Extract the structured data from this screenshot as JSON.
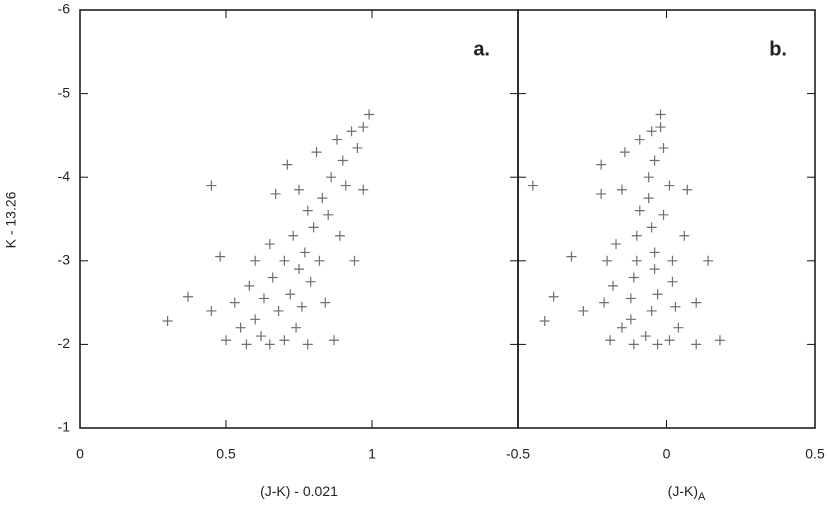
{
  "chart_data": [
    {
      "type": "scatter",
      "annotation": "a.",
      "xlabel": "(J-K) - 0.021",
      "ylabel": "K - 13.26",
      "color": "#6f6f6f",
      "xlim": [
        0,
        1.5
      ],
      "xticks": [
        0,
        0.5,
        1
      ],
      "ylim": [
        -1,
        -6
      ],
      "yticks": [
        -6,
        -5,
        -4,
        -3,
        -2,
        -1
      ],
      "x": [
        0.3,
        0.37,
        0.45,
        0.45,
        0.48,
        0.5,
        0.53,
        0.55,
        0.57,
        0.58,
        0.6,
        0.6,
        0.62,
        0.63,
        0.65,
        0.65,
        0.66,
        0.67,
        0.68,
        0.7,
        0.7,
        0.71,
        0.72,
        0.73,
        0.74,
        0.75,
        0.75,
        0.76,
        0.77,
        0.78,
        0.78,
        0.79,
        0.8,
        0.81,
        0.82,
        0.83,
        0.84,
        0.85,
        0.86,
        0.87,
        0.88,
        0.89,
        0.9,
        0.91,
        0.93,
        0.94,
        0.95,
        0.97,
        0.99,
        0.97
      ],
      "y": [
        -2.28,
        -2.57,
        -3.9,
        -2.4,
        -3.05,
        -2.05,
        -2.5,
        -2.2,
        -2.0,
        -2.7,
        -3.0,
        -2.3,
        -2.1,
        -2.55,
        -3.2,
        -2.0,
        -2.8,
        -3.8,
        -2.4,
        -2.05,
        -3.0,
        -4.15,
        -2.6,
        -3.3,
        -2.2,
        -2.9,
        -3.85,
        -2.45,
        -3.1,
        -2.0,
        -3.6,
        -2.75,
        -3.4,
        -4.3,
        -3.0,
        -3.75,
        -2.5,
        -3.55,
        -4.0,
        -2.05,
        -4.45,
        -3.3,
        -4.2,
        -3.9,
        -4.55,
        -3.0,
        -4.35,
        -3.85,
        -4.75,
        -4.6
      ]
    },
    {
      "type": "scatter",
      "annotation": "b.",
      "xlabel": "(J-K)",
      "xlabel_subscript": "A",
      "color": "#6f6f6f",
      "xlim": [
        -0.5,
        0.5
      ],
      "xticks": [
        -0.5,
        0,
        0.5
      ],
      "ylim": [
        -1,
        -6
      ],
      "yticks": [
        -6,
        -5,
        -4,
        -3,
        -2,
        -1
      ],
      "x": [
        -0.41,
        -0.38,
        -0.45,
        -0.28,
        -0.32,
        -0.19,
        -0.21,
        -0.15,
        -0.11,
        -0.18,
        -0.2,
        -0.12,
        -0.07,
        -0.12,
        -0.17,
        -0.03,
        -0.11,
        -0.22,
        -0.05,
        0.01,
        -0.1,
        -0.22,
        -0.03,
        -0.1,
        0.04,
        -0.04,
        -0.15,
        0.03,
        -0.04,
        0.1,
        -0.09,
        0.02,
        -0.05,
        -0.14,
        0.02,
        -0.06,
        0.1,
        -0.01,
        -0.06,
        0.18,
        -0.09,
        0.06,
        -0.04,
        0.01,
        -0.05,
        0.14,
        -0.01,
        0.07,
        -0.02,
        -0.02
      ],
      "y": [
        -2.28,
        -2.57,
        -3.9,
        -2.4,
        -3.05,
        -2.05,
        -2.5,
        -2.2,
        -2.0,
        -2.7,
        -3.0,
        -2.3,
        -2.1,
        -2.55,
        -3.2,
        -2.0,
        -2.8,
        -3.8,
        -2.4,
        -2.05,
        -3.0,
        -4.15,
        -2.6,
        -3.3,
        -2.2,
        -2.9,
        -3.85,
        -2.45,
        -3.1,
        -2.0,
        -3.6,
        -2.75,
        -3.4,
        -4.3,
        -3.0,
        -3.75,
        -2.5,
        -3.55,
        -4.0,
        -2.05,
        -4.45,
        -3.3,
        -4.2,
        -3.9,
        -4.55,
        -3.0,
        -4.35,
        -3.85,
        -4.75,
        -4.6
      ]
    }
  ]
}
